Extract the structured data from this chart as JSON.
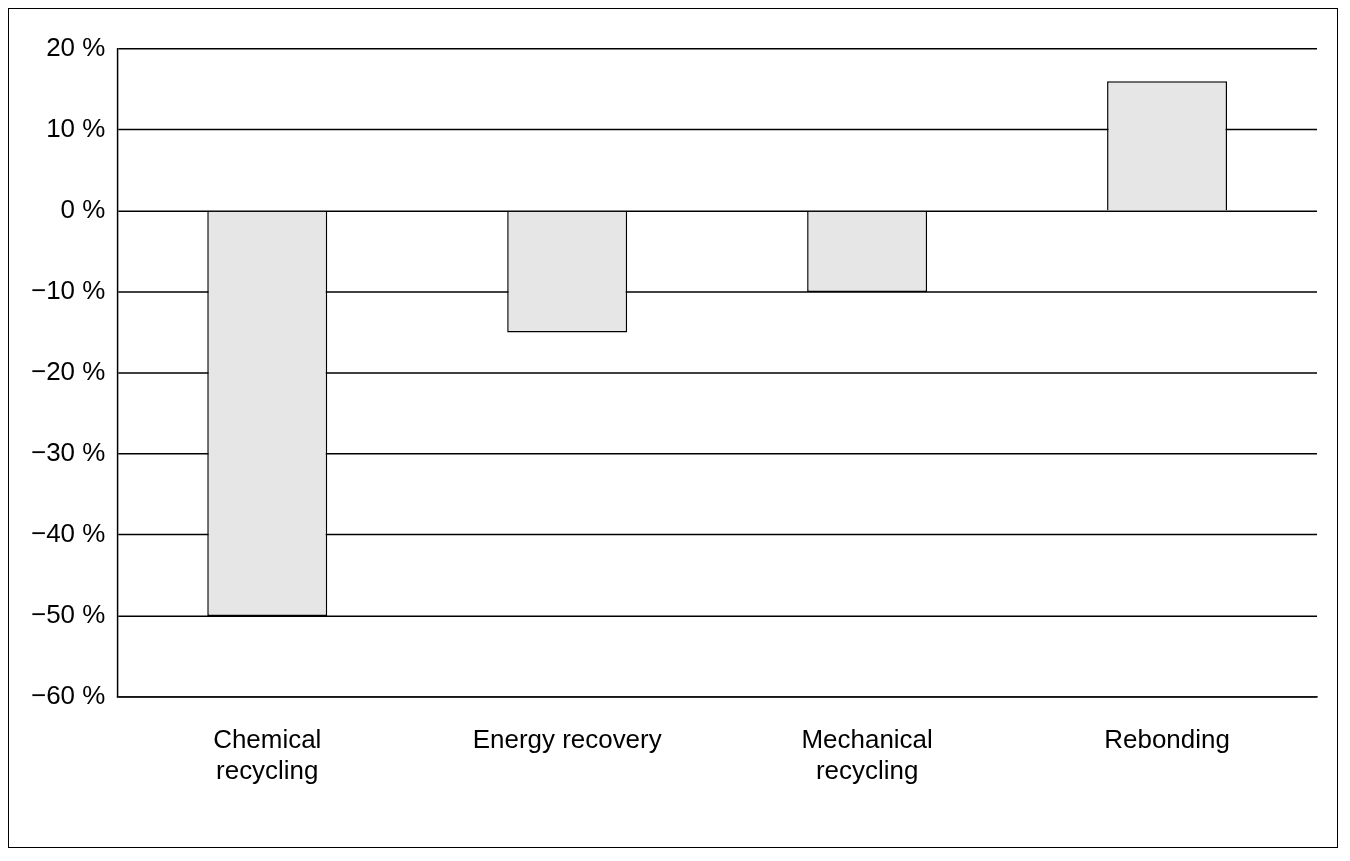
{
  "chart_data": {
    "type": "bar",
    "categories": [
      "Chemical recycling",
      "Energy recovery",
      "Mechanical recycling",
      "Rebonding"
    ],
    "values": [
      -50,
      -15,
      -10,
      16
    ],
    "color": "#e6e6e6",
    "ylim": [
      -60,
      20
    ],
    "yticks": [
      {
        "value": -60,
        "label": "−60 %"
      },
      {
        "value": -50,
        "label": "−50 %"
      },
      {
        "value": -40,
        "label": "−40 %"
      },
      {
        "value": -30,
        "label": "−30 %"
      },
      {
        "value": -20,
        "label": "−20 %"
      },
      {
        "value": -10,
        "label": "−10 %"
      },
      {
        "value": 0,
        "label": "0 %"
      },
      {
        "value": 10,
        "label": "10 %"
      },
      {
        "value": 20,
        "label": "20 %"
      }
    ],
    "grid": "y",
    "legend": false
  }
}
